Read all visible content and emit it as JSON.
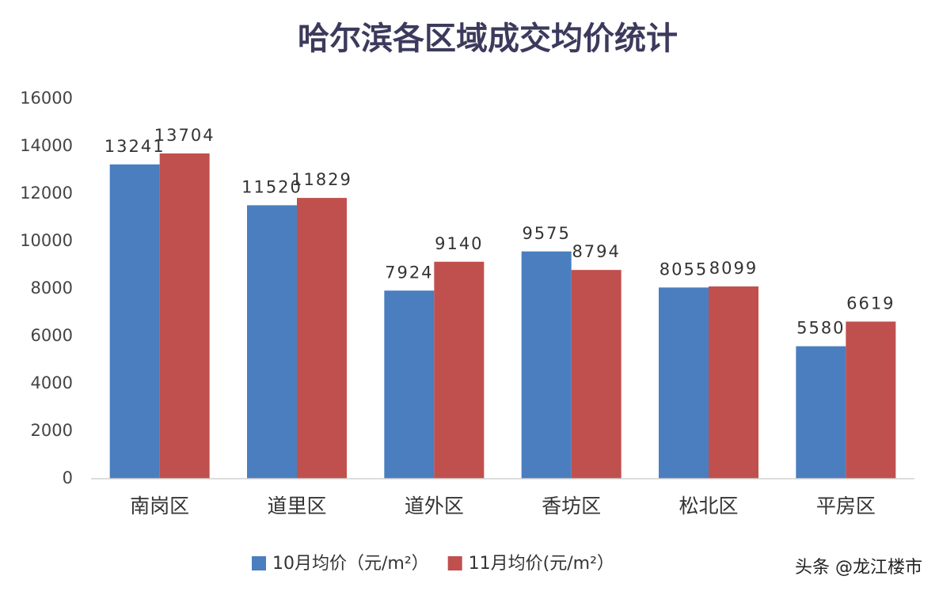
{
  "chart_data": {
    "type": "bar",
    "title": "哈尔滨各区域成交均价统计",
    "categories": [
      "南岗区",
      "道里区",
      "道外区",
      "香坊区",
      "松北区",
      "平房区"
    ],
    "series": [
      {
        "name": "10月均价（元/m²）",
        "color": "#4a7ebf",
        "values": [
          13241,
          11520,
          7924,
          9575,
          8055,
          5580
        ]
      },
      {
        "name": "11月均价(元/m²）",
        "color": "#c0504d",
        "values": [
          13704,
          11829,
          9140,
          8794,
          8099,
          6619
        ]
      }
    ],
    "ylim": [
      0,
      16000
    ],
    "yticks": [
      0,
      2000,
      4000,
      6000,
      8000,
      10000,
      12000,
      14000,
      16000
    ],
    "grid": false,
    "legend": "bottom",
    "source": "头条 @龙江楼市"
  }
}
